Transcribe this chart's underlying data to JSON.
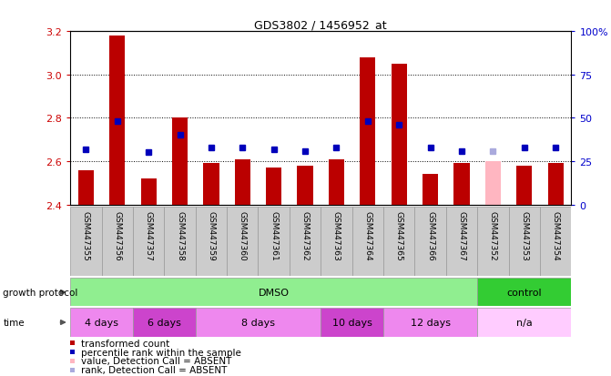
{
  "title": "GDS3802 / 1456952_at",
  "samples": [
    "GSM447355",
    "GSM447356",
    "GSM447357",
    "GSM447358",
    "GSM447359",
    "GSM447360",
    "GSM447361",
    "GSM447362",
    "GSM447363",
    "GSM447364",
    "GSM447365",
    "GSM447366",
    "GSM447367",
    "GSM447352",
    "GSM447353",
    "GSM447354"
  ],
  "bar_values": [
    2.56,
    3.18,
    2.52,
    2.8,
    2.59,
    2.61,
    2.57,
    2.58,
    2.61,
    3.08,
    3.05,
    2.54,
    2.59,
    2.6,
    2.58,
    2.59
  ],
  "bar_absent": [
    false,
    false,
    false,
    false,
    false,
    false,
    false,
    false,
    false,
    false,
    false,
    false,
    false,
    true,
    false,
    false
  ],
  "rank_values": [
    0.32,
    0.48,
    0.3,
    0.4,
    0.33,
    0.33,
    0.32,
    0.31,
    0.33,
    0.48,
    0.46,
    0.33,
    0.31,
    0.31,
    0.33,
    0.33
  ],
  "rank_absent": [
    false,
    false,
    false,
    false,
    false,
    false,
    false,
    false,
    false,
    false,
    false,
    false,
    false,
    true,
    false,
    false
  ],
  "ymin": 2.4,
  "ymax": 3.2,
  "yticks": [
    2.4,
    2.6,
    2.8,
    3.0,
    3.2
  ],
  "y2ticks": [
    0,
    25,
    50,
    75,
    100
  ],
  "grid_values": [
    2.6,
    2.8,
    3.0
  ],
  "growth_protocol_groups": [
    {
      "label": "DMSO",
      "start": 0,
      "end": 12,
      "color": "#90EE90"
    },
    {
      "label": "control",
      "start": 13,
      "end": 15,
      "color": "#33CC33"
    }
  ],
  "time_groups": [
    {
      "label": "4 days",
      "start": 0,
      "end": 1,
      "color": "#EE88EE"
    },
    {
      "label": "6 days",
      "start": 2,
      "end": 3,
      "color": "#CC44CC"
    },
    {
      "label": "8 days",
      "start": 4,
      "end": 7,
      "color": "#EE88EE"
    },
    {
      "label": "10 days",
      "start": 8,
      "end": 9,
      "color": "#CC44CC"
    },
    {
      "label": "12 days",
      "start": 10,
      "end": 12,
      "color": "#EE88EE"
    },
    {
      "label": "n/a",
      "start": 13,
      "end": 15,
      "color": "#FFCCFF"
    }
  ],
  "bar_color": "#BB0000",
  "bar_absent_color": "#FFB6C1",
  "rank_color": "#0000BB",
  "rank_absent_color": "#AAAADD",
  "bar_width": 0.5,
  "baseline": 2.4,
  "legend_items": [
    {
      "label": "transformed count",
      "color": "#BB0000"
    },
    {
      "label": "percentile rank within the sample",
      "color": "#0000BB"
    },
    {
      "label": "value, Detection Call = ABSENT",
      "color": "#FFB6C1"
    },
    {
      "label": "rank, Detection Call = ABSENT",
      "color": "#AAAADD"
    }
  ],
  "growth_protocol_label": "growth protocol",
  "time_label": "time",
  "left_axis_color": "#CC0000",
  "right_axis_color": "#0000CC"
}
